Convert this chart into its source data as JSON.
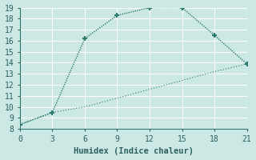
{
  "xlabel": "Humidex (Indice chaleur)",
  "xlim": [
    0,
    21
  ],
  "ylim": [
    8,
    19
  ],
  "xticks": [
    0,
    3,
    6,
    9,
    12,
    15,
    18,
    21
  ],
  "yticks": [
    8,
    9,
    10,
    11,
    12,
    13,
    14,
    15,
    16,
    17,
    18,
    19
  ],
  "line1_x": [
    0,
    3,
    6,
    9,
    12,
    15,
    18,
    21
  ],
  "line1_y": [
    8.4,
    9.5,
    16.2,
    18.3,
    19.0,
    19.0,
    16.5,
    13.9
  ],
  "line2_x": [
    0,
    3,
    6,
    9,
    12,
    15,
    18,
    21
  ],
  "line2_y": [
    8.4,
    9.5,
    10.0,
    10.8,
    11.6,
    12.4,
    13.2,
    13.9
  ],
  "line_color": "#2d7a6c",
  "bg_color": "#cce8e4",
  "plot_bg": "#cce8e4",
  "grid_color": "#ffffff",
  "axis_color": "#2d7a6c",
  "font_color": "#2d6060",
  "tick_fontsize": 7,
  "label_fontsize": 7.5
}
